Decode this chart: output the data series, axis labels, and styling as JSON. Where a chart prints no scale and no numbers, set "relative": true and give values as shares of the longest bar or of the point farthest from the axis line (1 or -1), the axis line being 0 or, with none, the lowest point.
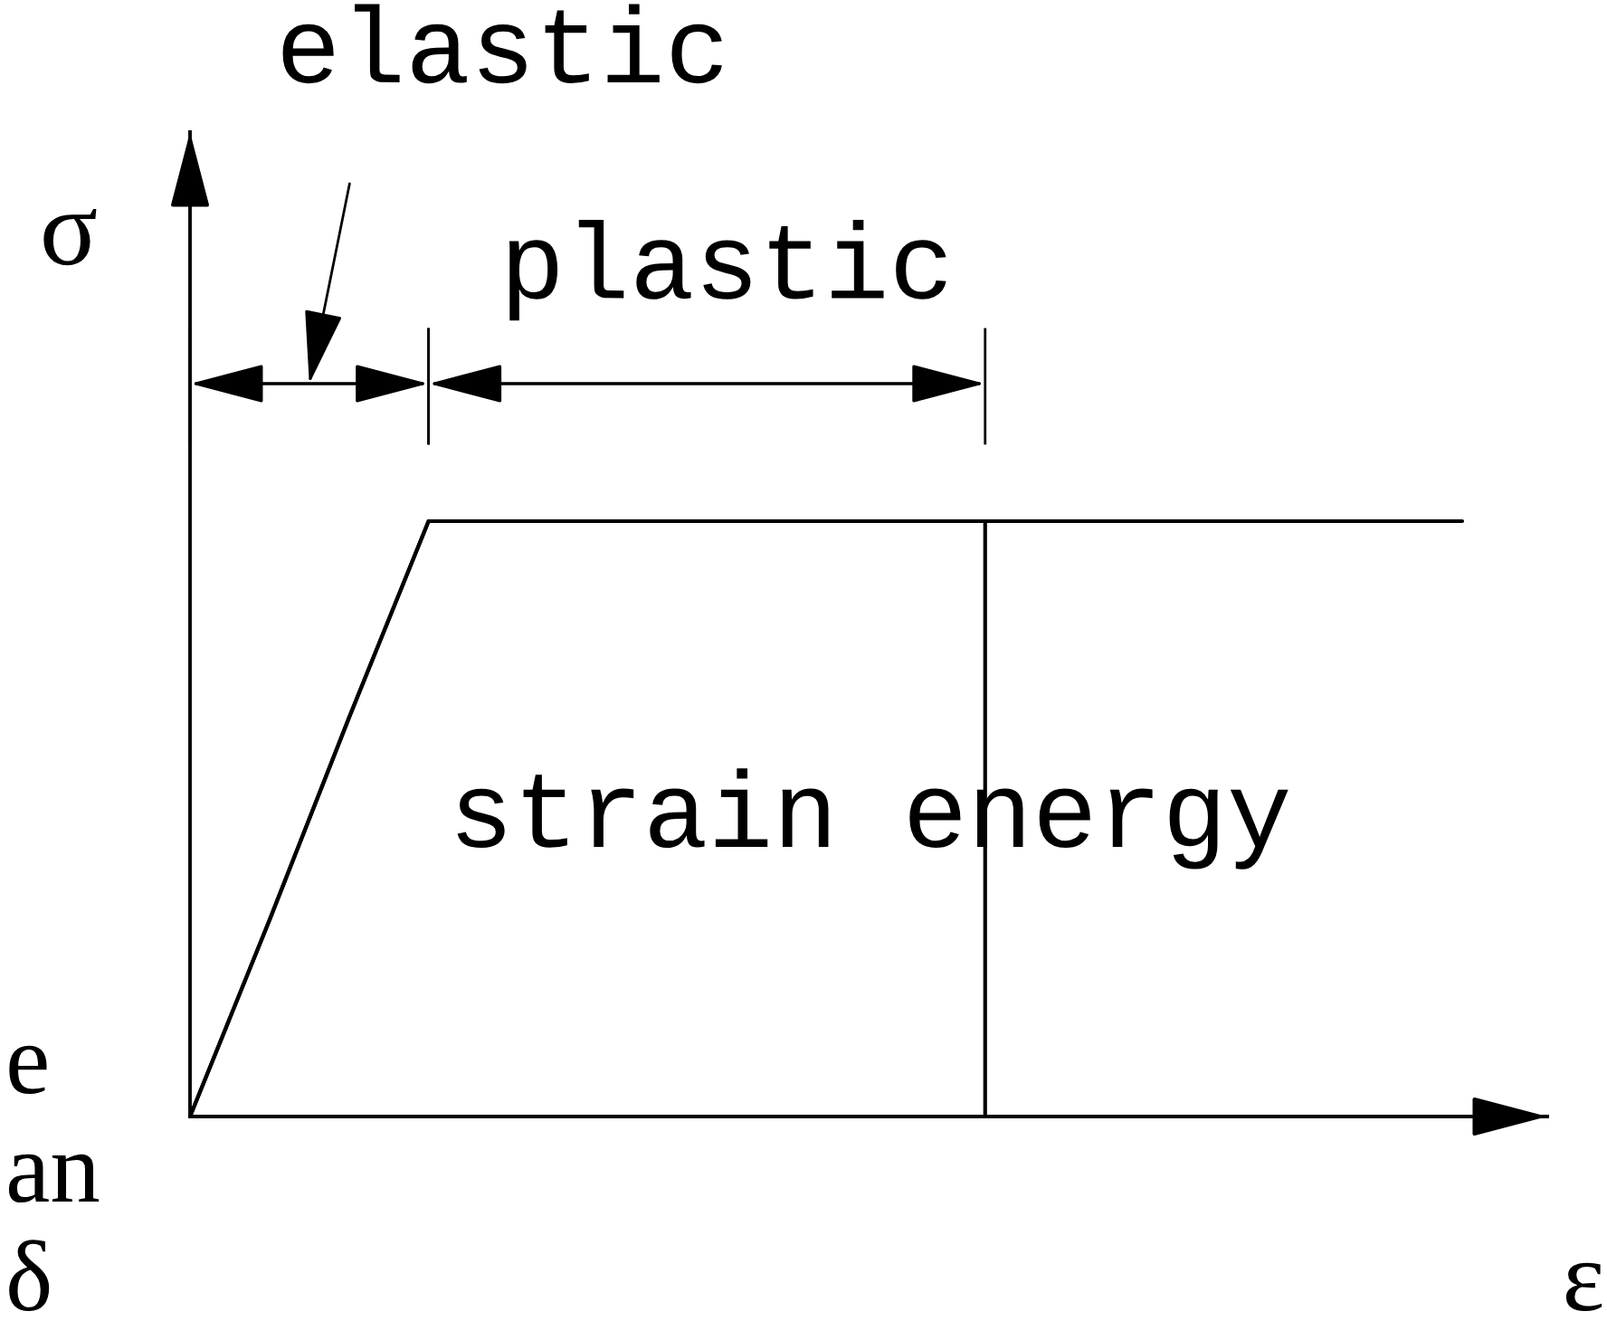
{
  "chart_data": {
    "type": "line",
    "relative": true,
    "xlabel": "ε",
    "ylabel": "σ",
    "categories": [
      null,
      null,
      null,
      null,
      null,
      null,
      null,
      null,
      null,
      null,
      null,
      null,
      null,
      null,
      null,
      null,
      null
    ],
    "series": [
      {
        "color": "#000000",
        "values": [
          0,
          0.33,
          0.67,
          1,
          1,
          1,
          1,
          1,
          1,
          1,
          1,
          1,
          1,
          1,
          1,
          1,
          1
        ]
      },
      {
        "name": "strain energy",
        "type": "area",
        "color": "#ffffff",
        "values": [
          0,
          0.33,
          0.67,
          1,
          1,
          1,
          1,
          1,
          1,
          1,
          1,
          null,
          null,
          null,
          null,
          null,
          null
        ]
      }
    ],
    "annotations": [
      "elastic",
      "plastic",
      "e",
      "an",
      "δ"
    ]
  }
}
